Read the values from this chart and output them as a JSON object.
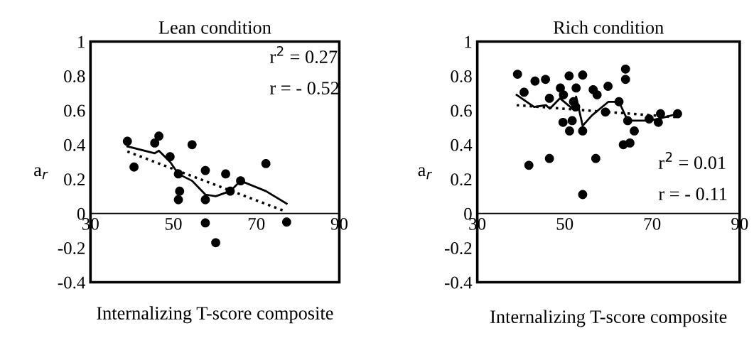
{
  "chart_data": [
    {
      "type": "scatter",
      "title": "Lean condition",
      "xlabel": "Internalizing T-score composite",
      "ylabel": "a$_{r}$",
      "xlim": [
        30,
        90
      ],
      "xticks": [
        30,
        50,
        70,
        90
      ],
      "ylim": [
        -0.4,
        1
      ],
      "yticks": [
        -0.4,
        -0.2,
        0,
        0.2,
        0.4,
        0.6,
        0.8,
        1
      ],
      "grid": false,
      "annotations": [
        "r$^{2}$ = 0.27",
        "r = - 0.52"
      ],
      "series": [
        {
          "color": "#000000",
          "marker": "circle",
          "x": [
            38.9,
            40.5,
            45.5,
            46.5,
            49.2,
            51.2,
            51.5,
            51.2,
            54.5,
            57.7,
            57.7,
            57.7,
            60.2,
            62.6,
            63.7,
            66.2,
            72.3,
            77.3
          ],
          "values": [
            0.42,
            0.27,
            0.41,
            0.45,
            0.33,
            0.23,
            0.13,
            0.08,
            0.4,
            0.25,
            0.08,
            -0.055,
            -0.17,
            0.23,
            0.13,
            0.19,
            0.29,
            -0.05
          ]
        },
        {
          "type": "line",
          "color": "#000000",
          "line_style": "solid",
          "x": [
            38.9,
            45.5,
            46.5,
            49.2,
            51.2,
            54.5,
            57.7,
            60.2,
            63.7,
            66.2,
            72.3,
            77.3
          ],
          "values": [
            0.39,
            0.35,
            0.365,
            0.3,
            0.23,
            0.19,
            0.11,
            0.1,
            0.13,
            0.19,
            0.13,
            0.057
          ]
        },
        {
          "type": "line",
          "color": "#000000",
          "line_style": "dotted",
          "x": [
            38.9,
            76.4
          ],
          "values": [
            0.36,
            0.018
          ]
        }
      ]
    },
    {
      "type": "scatter",
      "title": "Rich condition",
      "xlabel": "Internalizing T-score composite",
      "ylabel": "a$_{r}$",
      "xlim": [
        30,
        90
      ],
      "xticks": [
        30,
        50,
        70,
        90
      ],
      "ylim": [
        -0.4,
        1
      ],
      "yticks": [
        -0.4,
        -0.2,
        0,
        0.2,
        0.4,
        0.6,
        0.8,
        1
      ],
      "grid": false,
      "annotations": [
        "r$^{2}$ = 0.01",
        "r = - 0.11"
      ],
      "series": [
        {
          "color": "#000000",
          "marker": "circle",
          "x": [
            39.2,
            40.7,
            41.8,
            43.2,
            45.6,
            46.5,
            46.5,
            49.0,
            49.7,
            49.6,
            51.0,
            51.7,
            51.1,
            52.0,
            52.6,
            52.5,
            54.1,
            54.1,
            54.1,
            56.5,
            57.4,
            57.1,
            59.3,
            59.9,
            62.4,
            63.9,
            63.9,
            63.4,
            64.9,
            64.4,
            65.9,
            69.3,
            71.4,
            71.9,
            75.8
          ],
          "values": [
            0.81,
            0.705,
            0.28,
            0.77,
            0.78,
            0.67,
            0.32,
            0.73,
            0.69,
            0.53,
            0.8,
            0.54,
            0.48,
            0.65,
            0.73,
            0.62,
            0.805,
            0.48,
            0.11,
            0.72,
            0.69,
            0.32,
            0.59,
            0.74,
            0.65,
            0.84,
            0.78,
            0.4,
            0.41,
            0.54,
            0.48,
            0.55,
            0.53,
            0.58,
            0.58
          ]
        },
        {
          "type": "line",
          "color": "#000000",
          "line_style": "solid",
          "x": [
            39.0,
            43.0,
            45.7,
            46.6,
            48.9,
            52.2,
            52.6,
            54.1,
            56.2,
            60.0,
            62.4,
            64.4,
            69.3,
            71.4,
            75.8
          ],
          "values": [
            0.69,
            0.62,
            0.63,
            0.61,
            0.67,
            0.6,
            0.68,
            0.51,
            0.57,
            0.65,
            0.65,
            0.54,
            0.54,
            0.55,
            0.58
          ]
        },
        {
          "type": "line",
          "color": "#000000",
          "line_style": "dotted",
          "x": [
            39.0,
            75.8
          ],
          "values": [
            0.63,
            0.56
          ]
        }
      ]
    }
  ]
}
